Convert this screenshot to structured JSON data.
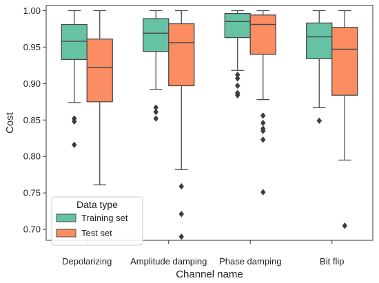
{
  "chart_data": {
    "type": "box",
    "title": "",
    "xlabel": "Channel name",
    "ylabel": "Cost",
    "ylim": [
      0.685,
      1.007
    ],
    "yticks": [
      "0.70",
      "0.75",
      "0.80",
      "0.85",
      "0.90",
      "0.95",
      "1.00"
    ],
    "categories": [
      "Depolarizing",
      "Amplitude damping",
      "Phase damping",
      "Bit flip"
    ],
    "grid": false,
    "legend": {
      "title": "Data type",
      "position": "bottom-left"
    },
    "series": [
      {
        "name": "Training set",
        "color": "#66c2a5",
        "boxes": [
          {
            "whisker_low": 0.874,
            "q1": 0.933,
            "median": 0.958,
            "q3": 0.981,
            "whisker_high": 1.0,
            "outliers": [
              0.852,
              0.848,
              0.816
            ]
          },
          {
            "whisker_low": 0.892,
            "q1": 0.944,
            "median": 0.969,
            "q3": 0.989,
            "whisker_high": 1.0,
            "outliers": [
              0.867,
              0.861,
              0.852
            ]
          },
          {
            "whisker_low": 0.918,
            "q1": 0.963,
            "median": 0.985,
            "q3": 0.996,
            "whisker_high": 1.0,
            "outliers": [
              0.912,
              0.907,
              0.897,
              0.887,
              0.884
            ]
          },
          {
            "whisker_low": 0.867,
            "q1": 0.934,
            "median": 0.964,
            "q3": 0.983,
            "whisker_high": 1.0,
            "outliers": [
              0.849
            ]
          }
        ]
      },
      {
        "name": "Test set",
        "color": "#fc8d62",
        "boxes": [
          {
            "whisker_low": 0.761,
            "q1": 0.875,
            "median": 0.922,
            "q3": 0.961,
            "whisker_high": 1.0,
            "outliers": []
          },
          {
            "whisker_low": 0.782,
            "q1": 0.897,
            "median": 0.956,
            "q3": 0.982,
            "whisker_high": 1.0,
            "outliers": [
              0.759,
              0.721,
              0.69
            ]
          },
          {
            "whisker_low": 0.878,
            "q1": 0.94,
            "median": 0.981,
            "q3": 0.994,
            "whisker_high": 1.0,
            "outliers": [
              0.856,
              0.846,
              0.838,
              0.835,
              0.823,
              0.751
            ]
          },
          {
            "whisker_low": 0.795,
            "q1": 0.884,
            "median": 0.947,
            "q3": 0.977,
            "whisker_high": 1.0,
            "outliers": [
              0.705
            ]
          }
        ]
      }
    ]
  }
}
